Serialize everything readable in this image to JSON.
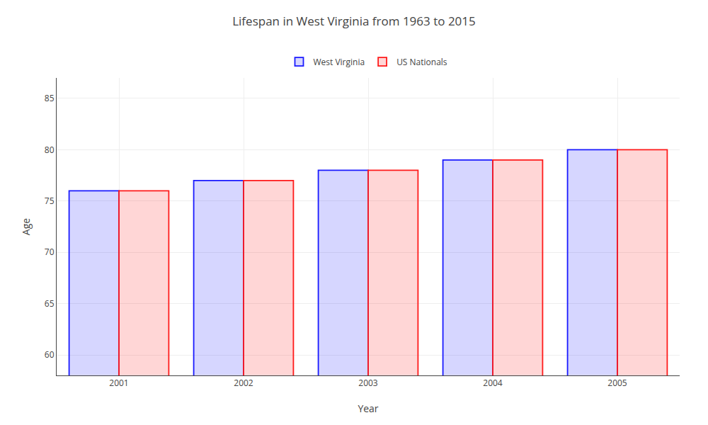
{
  "chart_data": {
    "type": "bar",
    "title": "Lifespan in West Virginia from 1963 to 2015",
    "xlabel": "Year",
    "ylabel": "Age",
    "categories": [
      "2001",
      "2002",
      "2003",
      "2004",
      "2005"
    ],
    "series": [
      {
        "name": "West Virginia",
        "color": "#1a1aff",
        "values": [
          76,
          77,
          78,
          79,
          80
        ]
      },
      {
        "name": "US Nationals",
        "color": "#ff1a1a",
        "values": [
          76,
          77,
          78,
          79,
          80
        ]
      }
    ],
    "ylim": [
      58,
      87
    ],
    "yticks": [
      60,
      65,
      70,
      75,
      80,
      85
    ],
    "grid": true,
    "legend": "upper center"
  }
}
